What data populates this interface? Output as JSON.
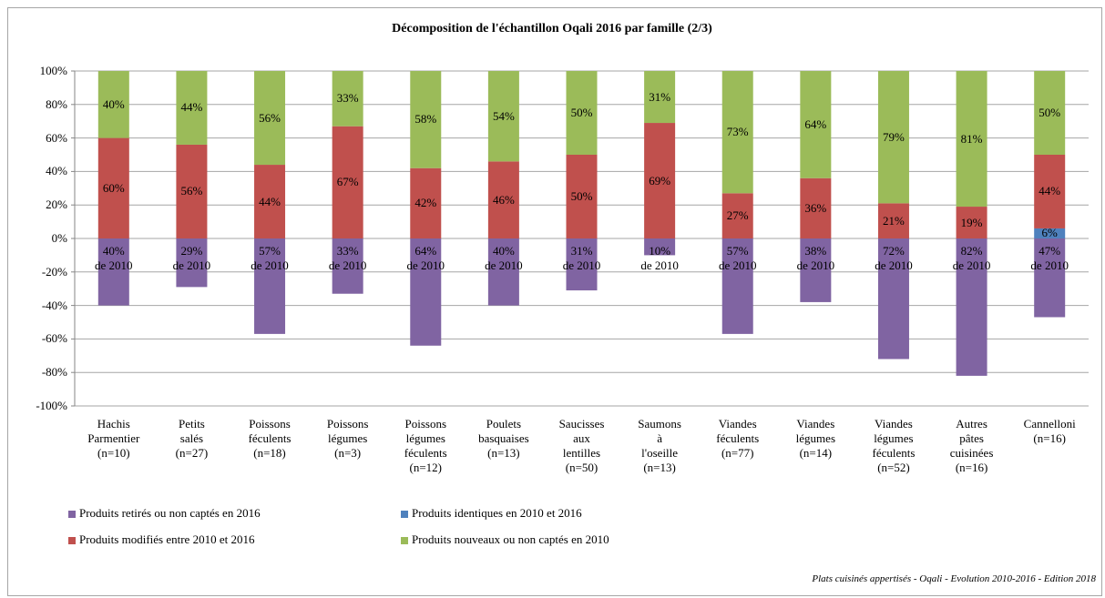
{
  "chart_data": {
    "type": "stacked_bar",
    "title": "Décomposition de l'échantillon Oqali 2016 par famille (2/3)",
    "source": "Plats cuisinés appertisés - Oqali - Evolution 2010-2016 - Edition 2018",
    "categories": [
      "Hachis\nParmentier\n(n=10)",
      "Petits\nsalés\n(n=27)",
      "Poissons\nféculents\n(n=18)",
      "Poissons\nlégumes\n(n=3)",
      "Poissons\nlégumes\nféculents\n(n=12)",
      "Poulets\nbasquaises\n(n=13)",
      "Saucisses\naux\nlentilles\n(n=50)",
      "Saumons\nà\nl'oseille\n(n=13)",
      "Viandes\nféculents\n(n=77)",
      "Viandes\nlégumes\n(n=14)",
      "Viandes\nlégumes\nféculents\n(n=52)",
      "Autres\npâtes\ncuisinées\n(n=16)",
      "Cannelloni\n(n=16)"
    ],
    "series": [
      {
        "name": "Produits retirés ou non captés en 2016",
        "color": "#8064a2",
        "values": [
          -40,
          -29,
          -57,
          -33,
          -64,
          -40,
          -31,
          -10,
          -57,
          -38,
          -72,
          -82,
          -47
        ],
        "value_labels": [
          "40%\nde 2010",
          "29%\nde 2010",
          "57%\nde 2010",
          "33%\nde 2010",
          "64%\nde 2010",
          "40%\nde 2010",
          "31%\nde 2010",
          "10%\nde 2010",
          "57%\nde 2010",
          "38%\nde 2010",
          "72%\nde 2010",
          "82%\nde 2010",
          "47%\nde 2010"
        ]
      },
      {
        "name": "Produits identiques en 2010 et 2016",
        "color": "#4f81bd",
        "values": [
          0,
          0,
          0,
          0,
          0,
          0,
          0,
          0,
          0,
          0,
          0,
          0,
          6
        ],
        "value_labels": [
          null,
          null,
          null,
          null,
          null,
          null,
          null,
          null,
          null,
          null,
          null,
          null,
          "6%"
        ]
      },
      {
        "name": "Produits modifiés entre 2010 et 2016",
        "color": "#c0504d",
        "values": [
          60,
          56,
          44,
          67,
          42,
          46,
          50,
          69,
          27,
          36,
          21,
          19,
          44
        ],
        "value_labels": [
          "60%",
          "56%",
          "44%",
          "67%",
          "42%",
          "46%",
          "50%",
          "69%",
          "27%",
          "36%",
          "21%",
          "19%",
          "44%"
        ]
      },
      {
        "name": "Produits nouveaux ou non captés en 2010",
        "color": "#9bbb59",
        "values": [
          40,
          44,
          56,
          33,
          58,
          54,
          50,
          31,
          73,
          64,
          79,
          81,
          50
        ],
        "value_labels": [
          "40%",
          "44%",
          "56%",
          "33%",
          "58%",
          "54%",
          "50%",
          "31%",
          "73%",
          "64%",
          "79%",
          "81%",
          "50%"
        ]
      }
    ],
    "ylim": [
      -100,
      100
    ],
    "yticks": [
      {
        "value": -100,
        "label": "-100%"
      },
      {
        "value": -80,
        "label": "-80%"
      },
      {
        "value": -60,
        "label": "-60%"
      },
      {
        "value": -40,
        "label": "-40%"
      },
      {
        "value": -20,
        "label": "-20%"
      },
      {
        "value": 0,
        "label": "0%"
      },
      {
        "value": 20,
        "label": "20%"
      },
      {
        "value": 40,
        "label": "40%"
      },
      {
        "value": 60,
        "label": "60%"
      },
      {
        "value": 80,
        "label": "80%"
      },
      {
        "value": 100,
        "label": "100%"
      }
    ],
    "grid": true,
    "legend": "bottom"
  }
}
